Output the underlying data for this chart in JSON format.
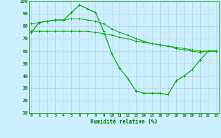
{
  "xlabel": "Humidité relative (%)",
  "background_color": "#cceeff",
  "grid_color": "#aacccc",
  "line_color": "#00aa00",
  "xlim": [
    0,
    23
  ],
  "ylim": [
    10,
    100
  ],
  "xticks": [
    0,
    1,
    2,
    3,
    4,
    5,
    6,
    7,
    8,
    9,
    10,
    11,
    12,
    13,
    14,
    15,
    16,
    17,
    18,
    19,
    20,
    21,
    22,
    23
  ],
  "yticks": [
    10,
    20,
    30,
    40,
    50,
    60,
    70,
    80,
    90,
    100
  ],
  "line1_x": [
    0,
    1,
    2,
    3,
    4,
    5,
    6,
    7,
    8,
    9,
    10,
    11,
    12,
    13,
    14,
    15,
    16,
    17,
    18,
    19,
    20,
    21,
    22,
    23
  ],
  "line1_y": [
    75,
    83,
    84,
    85,
    85,
    91,
    97,
    94,
    91,
    76,
    58,
    46,
    38,
    28,
    26,
    26,
    26,
    25,
    36,
    40,
    45,
    53,
    60,
    60
  ],
  "line2_x": [
    0,
    1,
    2,
    3,
    4,
    5,
    6,
    7,
    8,
    9,
    10,
    11,
    12,
    13,
    14,
    15,
    16,
    17,
    18,
    19,
    20,
    21,
    22,
    23
  ],
  "line2_y": [
    82,
    83,
    84,
    85,
    85,
    86,
    86,
    85,
    84,
    82,
    78,
    75,
    73,
    70,
    68,
    66,
    65,
    64,
    62,
    61,
    60,
    59,
    60,
    60
  ],
  "line3_x": [
    0,
    1,
    2,
    3,
    4,
    5,
    6,
    7,
    8,
    9,
    10,
    11,
    12,
    13,
    14,
    15,
    16,
    17,
    18,
    19,
    20,
    21,
    22,
    23
  ],
  "line3_y": [
    76,
    76,
    76,
    76,
    76,
    76,
    76,
    76,
    75,
    74,
    73,
    71,
    70,
    68,
    67,
    66,
    65,
    64,
    63,
    62,
    61,
    60,
    60,
    60
  ]
}
